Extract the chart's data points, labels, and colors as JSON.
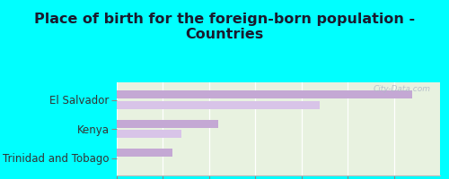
{
  "title": "Place of birth for the foreign-born population -\nCountries",
  "categories": [
    "El Salvador",
    "Kenya",
    "Trinidad and Tobago"
  ],
  "values_bar1": [
    32,
    11,
    6
  ],
  "values_bar2": [
    22,
    7,
    0
  ],
  "bar_color1": "#c4a8d4",
  "bar_color2": "#d8c4e8",
  "background_color": "#00FFFF",
  "plot_bg_top": "#e8f2e0",
  "plot_bg_bottom": "#f5faf0",
  "xlim": [
    0,
    35
  ],
  "xticks": [
    0,
    5,
    10,
    15,
    20,
    25,
    30
  ],
  "watermark": "City-Data.com",
  "title_fontsize": 11.5,
  "tick_fontsize": 8,
  "label_fontsize": 8.5
}
